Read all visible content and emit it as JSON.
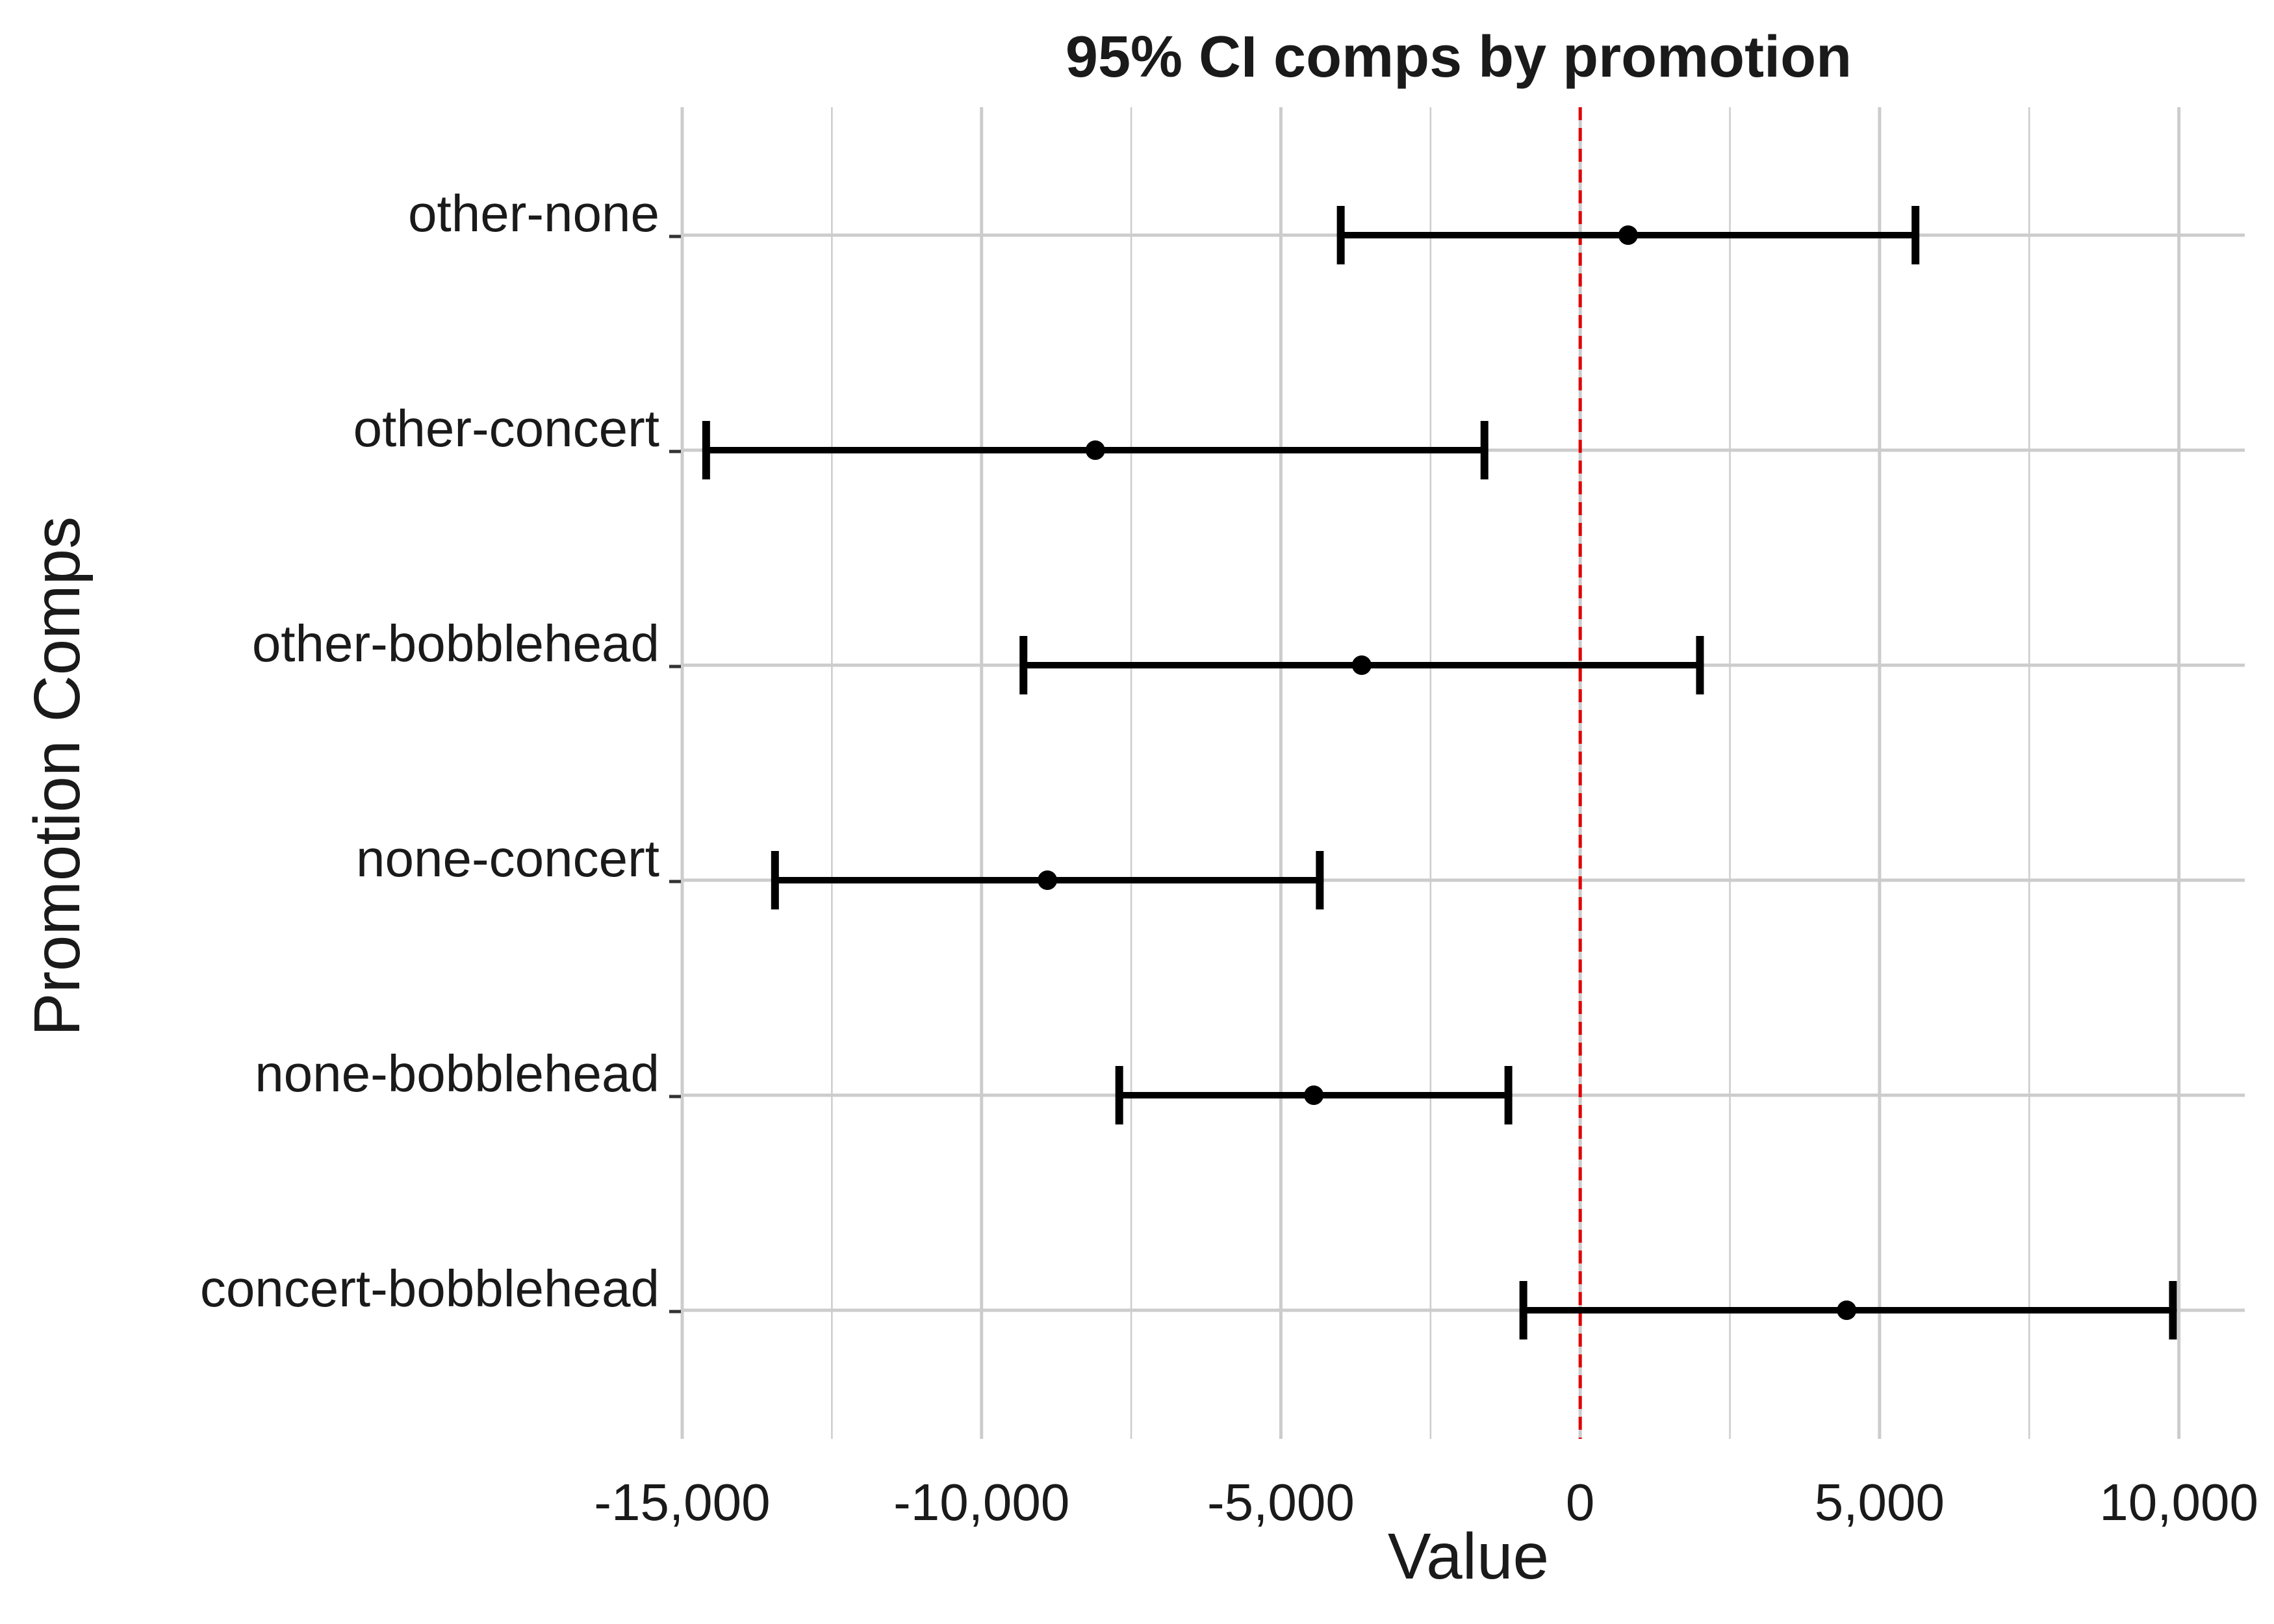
{
  "chart_data": {
    "type": "errorbar",
    "title": "95% CI comps by promotion",
    "xlabel": "Value",
    "ylabel": "Promotion Comps",
    "xlim": [
      -15000,
      11100
    ],
    "x_ticks": [
      {
        "value": -15000,
        "label": "-15,000"
      },
      {
        "value": -10000,
        "label": "-10,000"
      },
      {
        "value": -5000,
        "label": "-5,000"
      },
      {
        "value": 0,
        "label": "0"
      },
      {
        "value": 5000,
        "label": "5,000"
      },
      {
        "value": 10000,
        "label": "10,000"
      }
    ],
    "minor_x_ticks": [
      -12500,
      -7500,
      -2500,
      2500,
      7500
    ],
    "reference_line": {
      "x": 0,
      "color": "#e00000",
      "style": "dashed"
    },
    "grid": true,
    "categories": [
      "other-none",
      "other-concert",
      "other-bobblehead",
      "none-concert",
      "none-bobblehead",
      "concert-bobblehead"
    ],
    "estimates": [
      800,
      -8100,
      -3650,
      -8900,
      -4450,
      4450
    ],
    "lower": [
      -4000,
      -14600,
      -9300,
      -13450,
      -7700,
      -950
    ],
    "upper": [
      5600,
      -1600,
      2000,
      -4350,
      -1200,
      9900
    ],
    "colors": {
      "bars": "#000000",
      "grid": "#cccccc",
      "reference": "#e00000"
    }
  }
}
